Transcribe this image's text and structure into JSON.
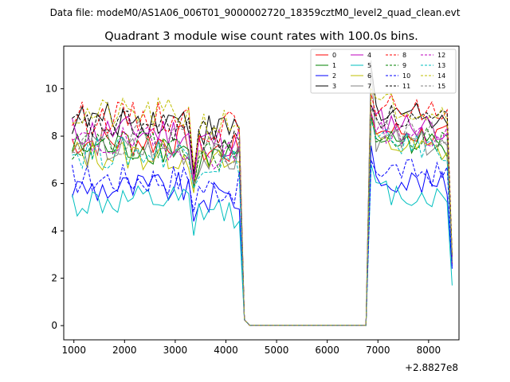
{
  "suptitle": "Data file: modeM0/AS1A06_006T01_9000002720_18359cztM0_level2_quad_clean.evt",
  "chart_data": {
    "type": "line",
    "title": "Quadrant 3 module wise count rates with 100.0s bins.",
    "xlabel": "",
    "ylabel": "",
    "offset_text": "+2.8827e8",
    "xlim": [
      800,
      8600
    ],
    "ylim": [
      -0.6,
      11.8
    ],
    "xticks": [
      1000,
      2000,
      3000,
      4000,
      5000,
      6000,
      7000,
      8000
    ],
    "xtick_labels": [
      "1000",
      "2000",
      "3000",
      "4000",
      "5000",
      "6000",
      "7000",
      "8000"
    ],
    "yticks": [
      0,
      2,
      4,
      6,
      8,
      10
    ],
    "ytick_labels": [
      "0",
      "2",
      "4",
      "6",
      "8",
      "10"
    ],
    "legend_position": "top-right",
    "segments": [
      {
        "start": 965,
        "step": 100,
        "count": 34
      },
      {
        "start": 4365,
        "step": 100,
        "count": 24
      },
      {
        "start": 6765,
        "step": 100,
        "count": 18
      }
    ],
    "series": [
      {
        "name": "0",
        "color": "#ff0000",
        "dash": "solid",
        "base": 7.8,
        "dip": 6.0,
        "end": 2.6,
        "peak": 9.0
      },
      {
        "name": "1",
        "color": "#008000",
        "dash": "solid",
        "base": 7.5,
        "dip": 5.8,
        "end": 2.8,
        "peak": 8.8
      },
      {
        "name": "2",
        "color": "#0000ff",
        "dash": "solid",
        "base": 5.8,
        "dip": 4.4,
        "end": 2.4,
        "peak": 7.6
      },
      {
        "name": "3",
        "color": "#000000",
        "dash": "solid",
        "base": 8.7,
        "dip": 6.4,
        "end": 2.9,
        "peak": 11.0
      },
      {
        "name": "4",
        "color": "#bf00bf",
        "dash": "solid",
        "base": 8.2,
        "dip": 6.2,
        "end": 2.9,
        "peak": 9.3
      },
      {
        "name": "5",
        "color": "#00bfbf",
        "dash": "solid",
        "base": 5.2,
        "dip": 3.8,
        "end": 1.7,
        "peak": 6.8
      },
      {
        "name": "6",
        "color": "#bfbf00",
        "dash": "solid",
        "base": 7.2,
        "dip": 5.6,
        "end": 2.7,
        "peak": 8.6
      },
      {
        "name": "7",
        "color": "#808080",
        "dash": "solid",
        "base": 7.4,
        "dip": 5.9,
        "end": 2.8,
        "peak": 11.2
      },
      {
        "name": "8",
        "color": "#ff0000",
        "dash": "dashed",
        "base": 8.8,
        "dip": 6.6,
        "end": 3.0,
        "peak": 9.8
      },
      {
        "name": "9",
        "color": "#008000",
        "dash": "dashed",
        "base": 7.6,
        "dip": 5.9,
        "end": 2.8,
        "peak": 8.9
      },
      {
        "name": "10",
        "color": "#0000ff",
        "dash": "dashed",
        "base": 6.2,
        "dip": 4.8,
        "end": 2.5,
        "peak": 7.0
      },
      {
        "name": "11",
        "color": "#000000",
        "dash": "dashed",
        "base": 8.4,
        "dip": 6.4,
        "end": 2.9,
        "peak": 9.3
      },
      {
        "name": "12",
        "color": "#bf00bf",
        "dash": "dashed",
        "base": 7.7,
        "dip": 6.0,
        "end": 2.8,
        "peak": 9.0
      },
      {
        "name": "13",
        "color": "#00bfbf",
        "dash": "dashed",
        "base": 7.3,
        "dip": 5.8,
        "end": 2.7,
        "peak": 8.7
      },
      {
        "name": "14",
        "color": "#bfbf00",
        "dash": "dashed",
        "base": 8.9,
        "dip": 6.6,
        "end": 3.0,
        "peak": 10.0
      },
      {
        "name": "15",
        "color": "#808080",
        "dash": "dashed",
        "base": 7.9,
        "dip": 6.0,
        "end": 2.8,
        "peak": 9.2
      }
    ]
  }
}
